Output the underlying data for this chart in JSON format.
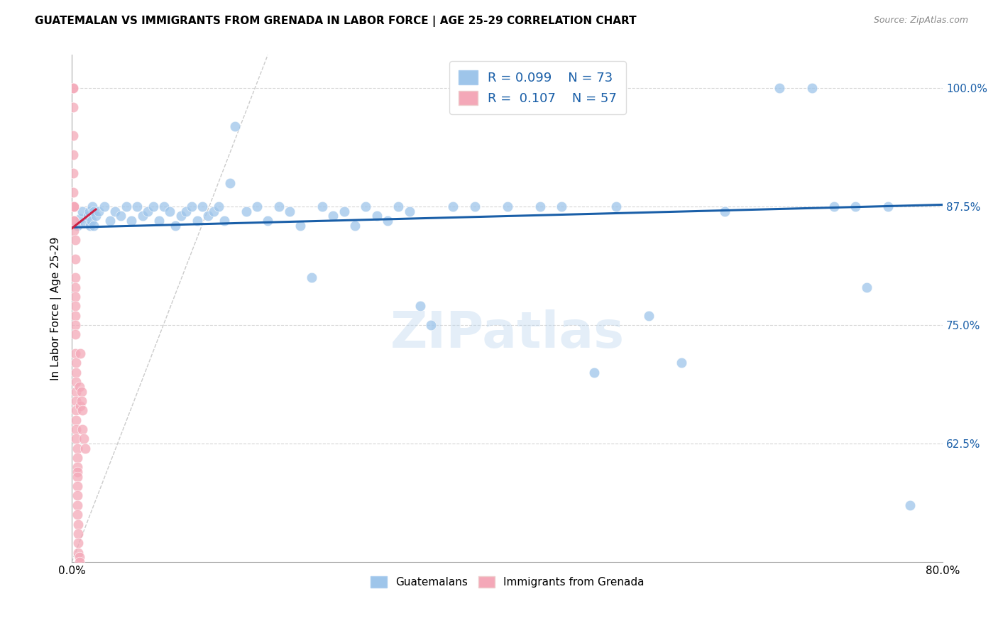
{
  "title": "GUATEMALAN VS IMMIGRANTS FROM GRENADA IN LABOR FORCE | AGE 25-29 CORRELATION CHART",
  "source": "Source: ZipAtlas.com",
  "ylabel": "In Labor Force | Age 25-29",
  "xmin": 0.0,
  "xmax": 0.8,
  "ymin": 0.5,
  "ymax": 1.035,
  "xticks": [
    0.0,
    0.1,
    0.2,
    0.3,
    0.4,
    0.5,
    0.6,
    0.7,
    0.8
  ],
  "xticklabels": [
    "0.0%",
    "",
    "",
    "",
    "",
    "",
    "",
    "",
    "80.0%"
  ],
  "ytick_positions": [
    0.625,
    0.75,
    0.875,
    1.0
  ],
  "yticklabels": [
    "62.5%",
    "75.0%",
    "87.5%",
    "100.0%"
  ],
  "blue_R": 0.099,
  "blue_N": 73,
  "pink_R": 0.107,
  "pink_N": 57,
  "blue_label": "Guatemalans",
  "pink_label": "Immigrants from Grenada",
  "blue_color": "#9ec5ea",
  "pink_color": "#f4a8b8",
  "blue_line_color": "#1a5fa8",
  "pink_line_color": "#cc2244",
  "background_color": "#ffffff",
  "watermark": "ZIPatlas",
  "blue_trend_x0": 0.0,
  "blue_trend_x1": 0.8,
  "blue_trend_y0": 0.853,
  "blue_trend_y1": 0.877,
  "pink_trend_x0": 0.0,
  "pink_trend_x1": 0.022,
  "pink_trend_y0": 0.852,
  "pink_trend_y1": 0.872,
  "blue_scatter_x": [
    0.005,
    0.008,
    0.01,
    0.012,
    0.015,
    0.016,
    0.017,
    0.018,
    0.019,
    0.02,
    0.02,
    0.022,
    0.025,
    0.03,
    0.035,
    0.04,
    0.045,
    0.05,
    0.055,
    0.06,
    0.065,
    0.07,
    0.075,
    0.08,
    0.085,
    0.09,
    0.095,
    0.1,
    0.105,
    0.11,
    0.115,
    0.12,
    0.125,
    0.13,
    0.135,
    0.14,
    0.145,
    0.15,
    0.16,
    0.17,
    0.18,
    0.19,
    0.2,
    0.21,
    0.22,
    0.23,
    0.24,
    0.25,
    0.26,
    0.27,
    0.28,
    0.29,
    0.3,
    0.31,
    0.32,
    0.33,
    0.35,
    0.37,
    0.4,
    0.43,
    0.45,
    0.48,
    0.5,
    0.53,
    0.56,
    0.6,
    0.65,
    0.68,
    0.7,
    0.72,
    0.73,
    0.75,
    0.77
  ],
  "blue_scatter_y": [
    0.855,
    0.862,
    0.87,
    0.858,
    0.865,
    0.87,
    0.855,
    0.86,
    0.875,
    0.87,
    0.855,
    0.865,
    0.87,
    0.875,
    0.86,
    0.87,
    0.865,
    0.875,
    0.86,
    0.875,
    0.865,
    0.87,
    0.875,
    0.86,
    0.875,
    0.87,
    0.855,
    0.865,
    0.87,
    0.875,
    0.86,
    0.875,
    0.865,
    0.87,
    0.875,
    0.86,
    0.9,
    0.96,
    0.87,
    0.875,
    0.86,
    0.875,
    0.87,
    0.855,
    0.8,
    0.875,
    0.865,
    0.87,
    0.855,
    0.875,
    0.865,
    0.86,
    0.875,
    0.87,
    0.77,
    0.75,
    0.875,
    0.875,
    0.875,
    0.875,
    0.875,
    0.7,
    0.875,
    0.76,
    0.71,
    0.87,
    1.0,
    1.0,
    0.875,
    0.875,
    0.79,
    0.875,
    0.56
  ],
  "pink_scatter_x": [
    0.001,
    0.001,
    0.001,
    0.001,
    0.001,
    0.001,
    0.001,
    0.002,
    0.002,
    0.002,
    0.002,
    0.002,
    0.002,
    0.002,
    0.003,
    0.003,
    0.003,
    0.003,
    0.003,
    0.003,
    0.003,
    0.003,
    0.003,
    0.003,
    0.004,
    0.004,
    0.004,
    0.004,
    0.004,
    0.004,
    0.004,
    0.004,
    0.004,
    0.005,
    0.005,
    0.005,
    0.005,
    0.005,
    0.005,
    0.005,
    0.005,
    0.005,
    0.006,
    0.006,
    0.006,
    0.006,
    0.007,
    0.007,
    0.007,
    0.008,
    0.008,
    0.009,
    0.009,
    0.01,
    0.01,
    0.011,
    0.012
  ],
  "pink_scatter_y": [
    1.0,
    1.0,
    0.98,
    0.95,
    0.93,
    0.91,
    0.89,
    0.875,
    0.875,
    0.875,
    0.875,
    0.86,
    0.86,
    0.85,
    0.84,
    0.82,
    0.8,
    0.79,
    0.78,
    0.77,
    0.76,
    0.75,
    0.74,
    0.72,
    0.71,
    0.7,
    0.69,
    0.68,
    0.67,
    0.66,
    0.65,
    0.64,
    0.63,
    0.62,
    0.61,
    0.6,
    0.595,
    0.59,
    0.58,
    0.57,
    0.56,
    0.55,
    0.54,
    0.53,
    0.52,
    0.51,
    0.505,
    0.5,
    0.685,
    0.665,
    0.72,
    0.68,
    0.67,
    0.66,
    0.64,
    0.63,
    0.62
  ],
  "diag_line_color": "#cccccc"
}
